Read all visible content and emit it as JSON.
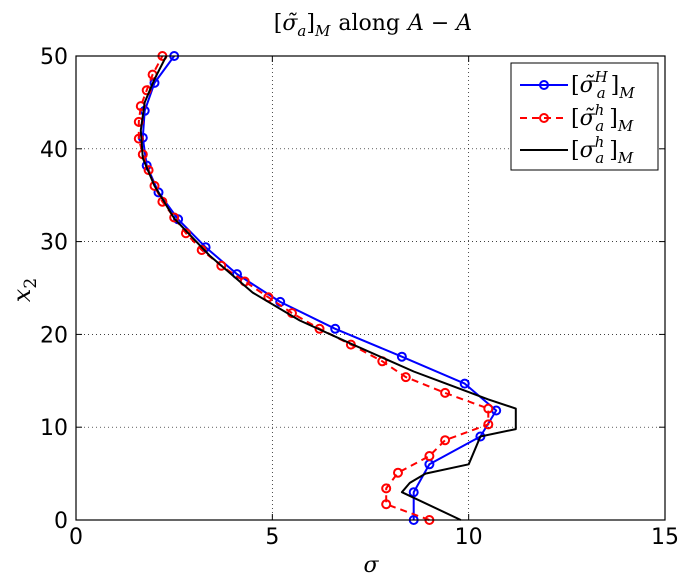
{
  "chart_data": {
    "type": "line",
    "title": "[σ̃a]M along A − A",
    "title_parts": {
      "sigma": "σ̃",
      "sub": "a",
      "sub2": "M",
      "text": "along",
      "rel": "A − A"
    },
    "xlabel": "σ",
    "ylabel_parts": {
      "base": "x",
      "sub": "2"
    },
    "xlim": [
      0,
      15
    ],
    "ylim": [
      0,
      50
    ],
    "xticks": [
      "0",
      "5",
      "10",
      "15"
    ],
    "yticks": [
      "0",
      "10",
      "20",
      "30",
      "40",
      "50"
    ],
    "grid": true,
    "legend_position": "top-right",
    "series": [
      {
        "name": "[σ̃aH]M",
        "legend": {
          "sigma": "σ̃",
          "sup": "H",
          "sub": "a",
          "sub2": "M"
        },
        "color": "#0000ff",
        "dash": "solid",
        "marker": "circle",
        "points": [
          [
            8.6,
            0
          ],
          [
            8.6,
            3
          ],
          [
            9.0,
            6
          ],
          [
            10.3,
            9
          ],
          [
            10.7,
            11.8
          ],
          [
            9.9,
            14.7
          ],
          [
            8.3,
            17.6
          ],
          [
            6.6,
            20.6
          ],
          [
            5.2,
            23.5
          ],
          [
            4.1,
            26.5
          ],
          [
            3.3,
            29.4
          ],
          [
            2.6,
            32.4
          ],
          [
            2.1,
            35.3
          ],
          [
            1.8,
            38.2
          ],
          [
            1.7,
            41.2
          ],
          [
            1.75,
            44.1
          ],
          [
            2.0,
            47.1
          ],
          [
            2.5,
            50
          ]
        ]
      },
      {
        "name": "[σ̃ah]M",
        "legend": {
          "sigma": "σ̃",
          "sup": "h",
          "sub": "a",
          "sub2": "M"
        },
        "color": "#ff0000",
        "dash": "dashed",
        "marker": "circle",
        "points": [
          [
            9.0,
            0
          ],
          [
            7.9,
            1.7
          ],
          [
            7.9,
            3.4
          ],
          [
            8.2,
            5.1
          ],
          [
            9.0,
            6.9
          ],
          [
            9.4,
            8.6
          ],
          [
            10.5,
            10.3
          ],
          [
            10.5,
            12.0
          ],
          [
            9.4,
            13.7
          ],
          [
            8.4,
            15.4
          ],
          [
            7.8,
            17.1
          ],
          [
            7.0,
            18.9
          ],
          [
            6.2,
            20.6
          ],
          [
            5.5,
            22.3
          ],
          [
            4.9,
            24.0
          ],
          [
            4.3,
            25.7
          ],
          [
            3.7,
            27.4
          ],
          [
            3.2,
            29.1
          ],
          [
            2.8,
            30.9
          ],
          [
            2.5,
            32.6
          ],
          [
            2.2,
            34.3
          ],
          [
            2.0,
            36.0
          ],
          [
            1.85,
            37.7
          ],
          [
            1.7,
            39.4
          ],
          [
            1.6,
            41.1
          ],
          [
            1.6,
            42.9
          ],
          [
            1.65,
            44.6
          ],
          [
            1.8,
            46.3
          ],
          [
            1.95,
            48.0
          ],
          [
            2.2,
            50
          ]
        ]
      },
      {
        "name": "[σah]M",
        "legend": {
          "sigma": "σ",
          "sup": "h",
          "sub": "a",
          "sub2": "M"
        },
        "color": "#000000",
        "dash": "solid",
        "marker": "none",
        "points": [
          [
            9.8,
            0
          ],
          [
            8.3,
            3
          ],
          [
            8.5,
            4
          ],
          [
            8.9,
            5
          ],
          [
            10.0,
            6
          ],
          [
            10.2,
            8
          ],
          [
            10.3,
            9
          ],
          [
            11.2,
            9.8
          ],
          [
            11.2,
            12
          ],
          [
            10.5,
            13
          ],
          [
            8.6,
            16
          ],
          [
            7.0,
            19
          ],
          [
            5.7,
            21.5
          ],
          [
            4.5,
            24.5
          ],
          [
            3.4,
            28.5
          ],
          [
            2.5,
            32.5
          ],
          [
            2.0,
            36
          ],
          [
            1.7,
            39
          ],
          [
            1.65,
            42
          ],
          [
            1.75,
            45
          ],
          [
            2.0,
            47.5
          ],
          [
            2.3,
            50
          ]
        ]
      }
    ]
  }
}
